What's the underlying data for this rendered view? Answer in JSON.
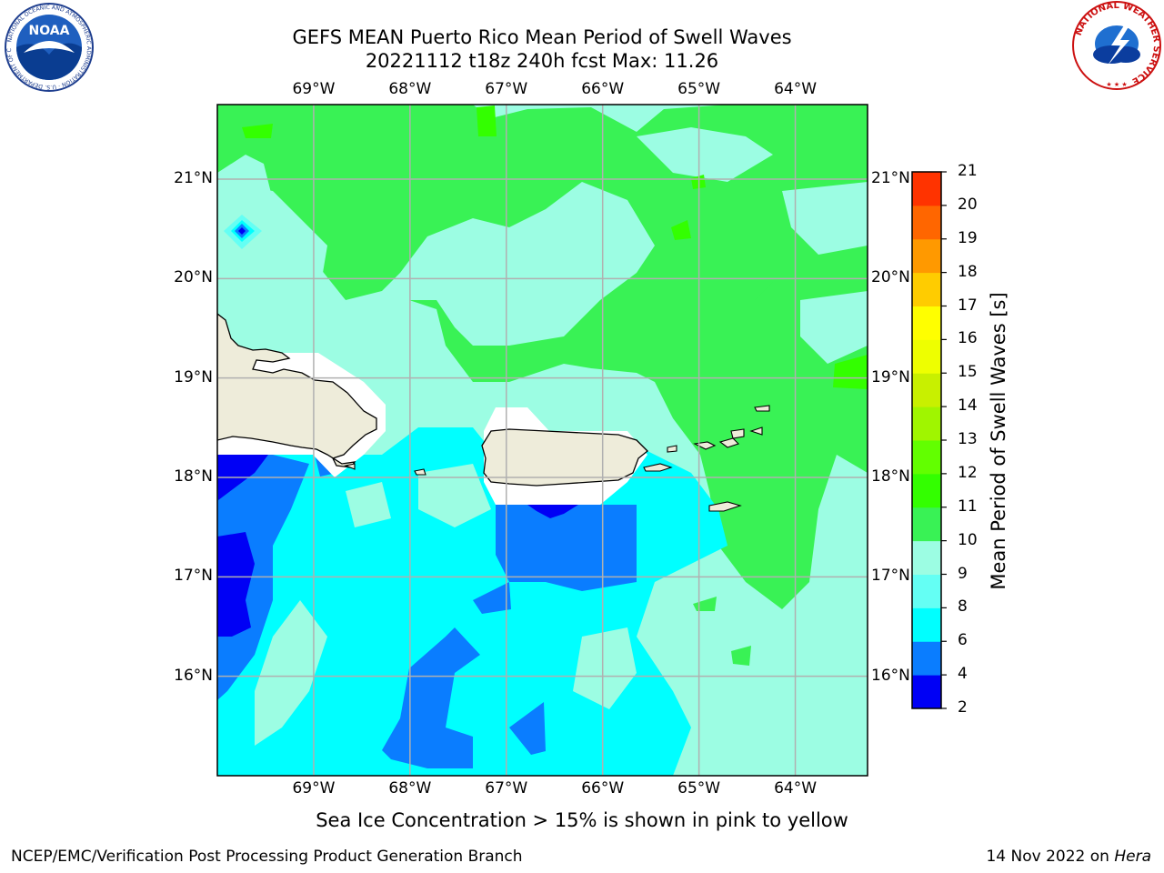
{
  "header": {
    "title_line1": "GEFS MEAN Puerto Rico Mean Period of Swell Waves",
    "title_line2": "20221112 t18z 240h fcst   Max: 11.26"
  },
  "map": {
    "lon_ticks": [
      "69°W",
      "68°W",
      "67°W",
      "66°W",
      "65°W",
      "64°W"
    ],
    "lat_ticks": [
      "21°N",
      "20°N",
      "19°N",
      "18°N",
      "17°N",
      "16°N"
    ],
    "extent": {
      "lon_min": -70.0,
      "lon_max": -63.25,
      "lat_min": 15.0,
      "lat_max": 21.75
    },
    "land_color": "#eeecda",
    "grid_color": "#b0b0b0"
  },
  "colorbar": {
    "label": "Mean Period of Swell Waves [s]",
    "tick_labels": [
      "2",
      "4",
      "6",
      "8",
      "9",
      "10",
      "11",
      "12",
      "13",
      "14",
      "15",
      "16",
      "17",
      "18",
      "19",
      "20",
      "21"
    ],
    "colors": [
      "#0000f5",
      "#0a7dff",
      "#00ffff",
      "#64fff4",
      "#9cfde3",
      "#39f255",
      "#33ff00",
      "#62ff00",
      "#a0f500",
      "#c8f000",
      "#eeff00",
      "#ffff00",
      "#ffcc00",
      "#ff9900",
      "#ff6600",
      "#ff3300",
      "#ff0000"
    ]
  },
  "caption": "Sea Ice Concentration > 15% is shown in pink to yellow",
  "footer": {
    "left": "NCEP/EMC/Verification Post Processing Product Generation Branch",
    "date": "14 Nov 2022 on ",
    "machine": "Hera"
  },
  "logos": {
    "noaa_text": "NOAA",
    "noaa_ring": "NATIONAL OCEANIC AND ATMOSPHERIC ADMINISTRATION · U.S. DEPARTMENT OF COMMERCE",
    "nws_ring": "NATIONAL WEATHER SERVICE"
  }
}
